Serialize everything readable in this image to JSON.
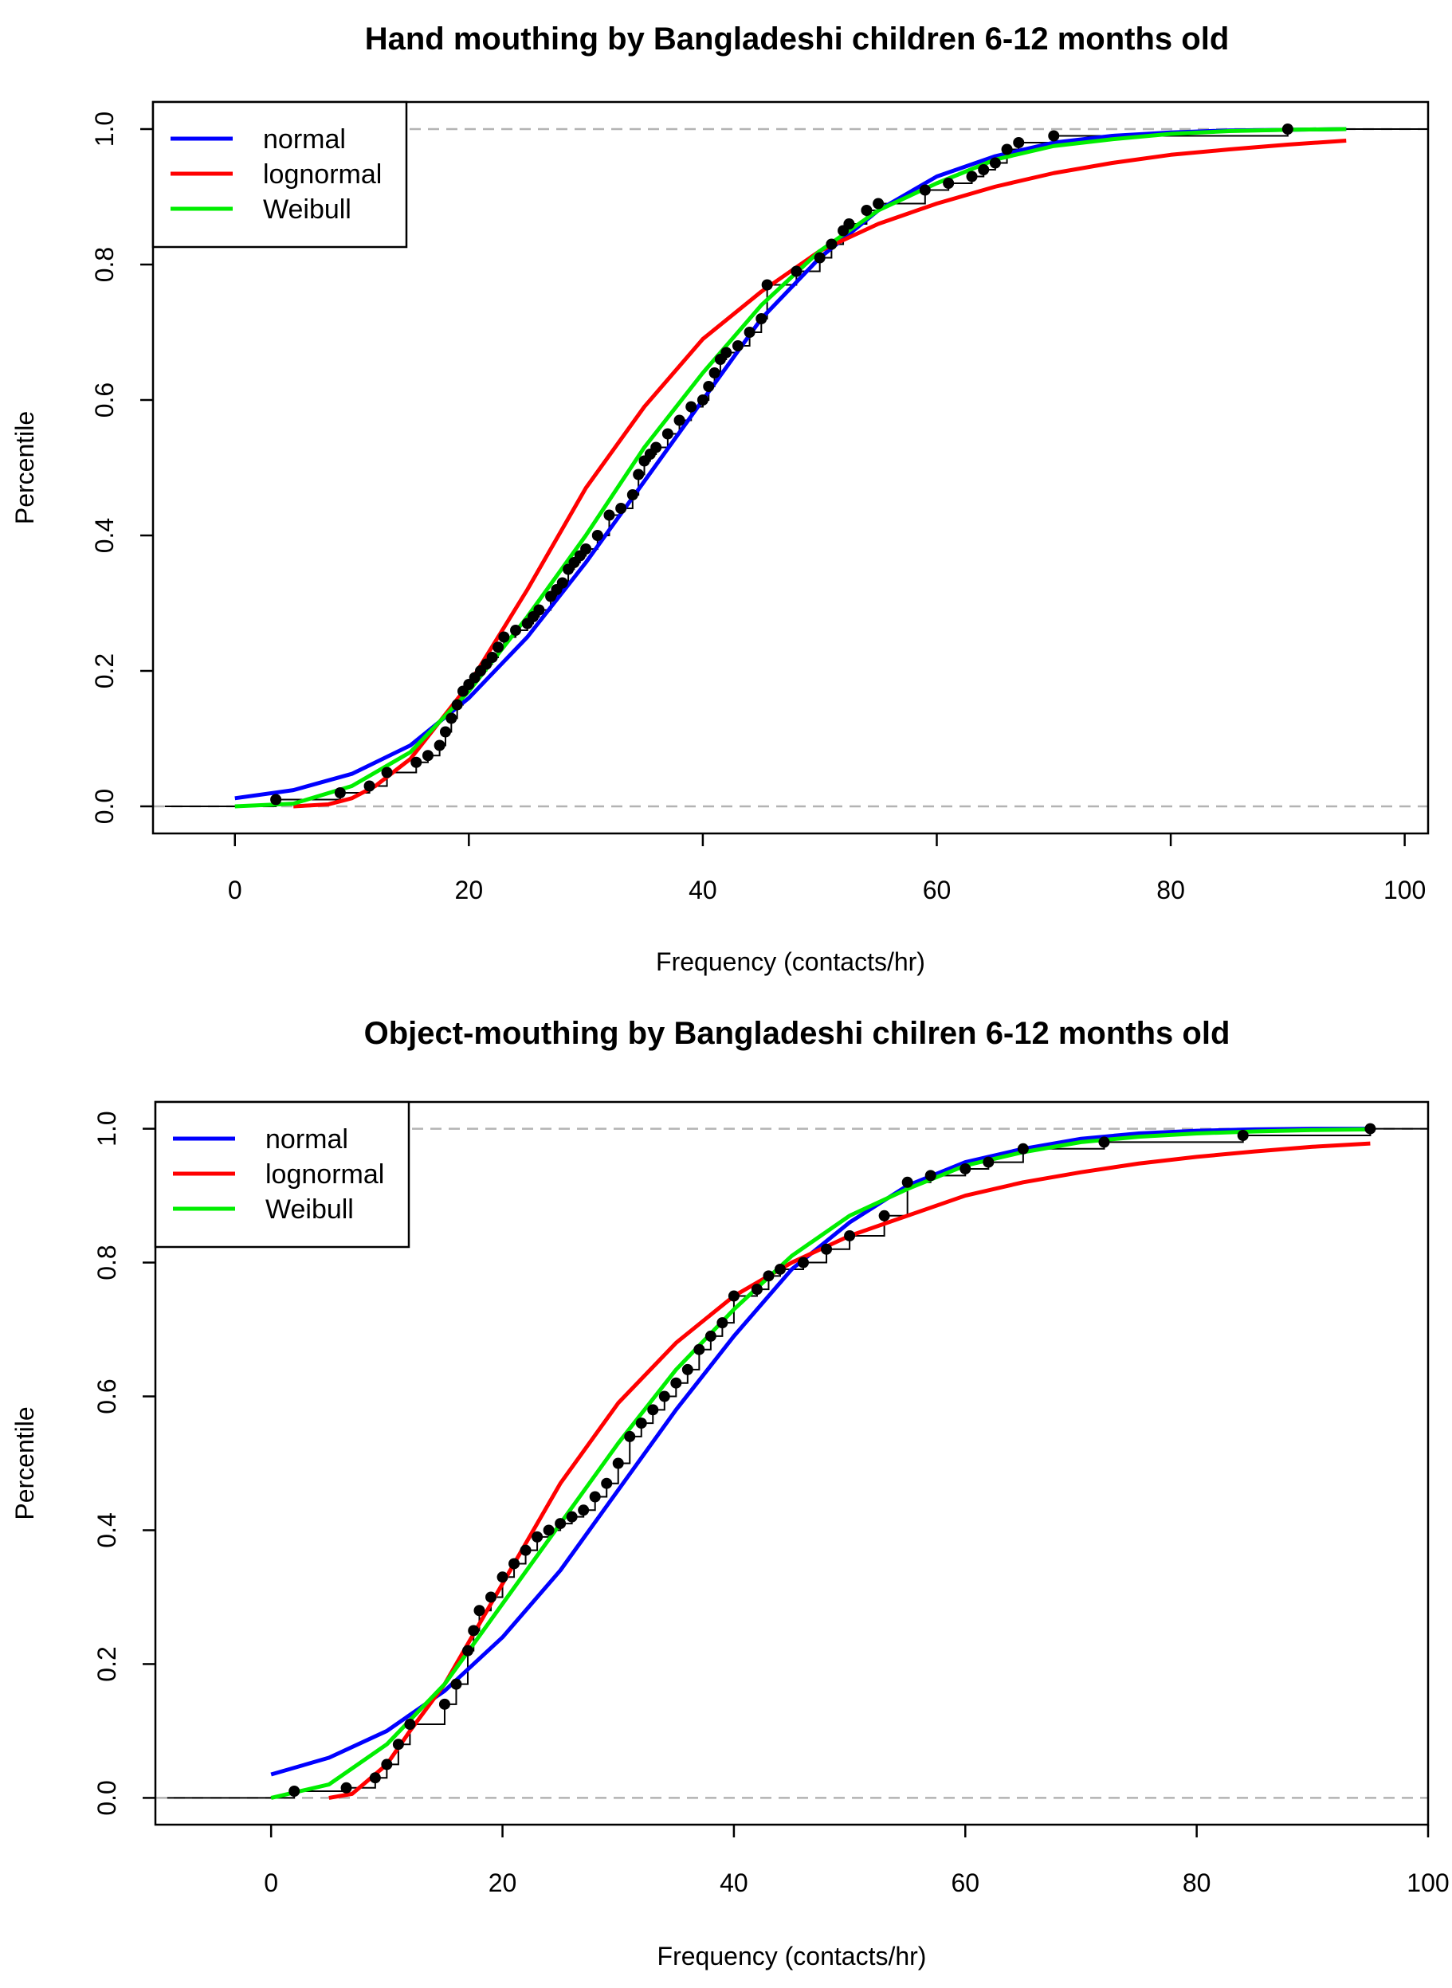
{
  "chart_data": [
    {
      "type": "line",
      "title": "Hand mouthing by Bangladeshi children 6-12 months old",
      "xlabel": "Frequency (contacts/hr)",
      "ylabel": "Percentile",
      "xlim": [
        -7,
        102
      ],
      "ylim": [
        -0.04,
        1.04
      ],
      "xticks": [
        "0",
        "20",
        "40",
        "60",
        "80",
        "100"
      ],
      "xtick_values": [
        0,
        20,
        40,
        60,
        80,
        100
      ],
      "yticks": [
        "0.0",
        "0.2",
        "0.4",
        "0.6",
        "0.8",
        "1.0"
      ],
      "ytick_values": [
        0,
        0.2,
        0.4,
        0.6,
        0.8,
        1.0
      ],
      "reference_lines": [
        0,
        1
      ],
      "legend": {
        "position": "top-left",
        "entries": [
          "normal",
          "lognormal",
          "Weibull"
        ]
      },
      "series": [
        {
          "name": "normal",
          "color": "#0000ff",
          "x": [
            0,
            5,
            10,
            15,
            20,
            25,
            30,
            35,
            40,
            45,
            50,
            55,
            60,
            65,
            70,
            75,
            80,
            85,
            90,
            95
          ],
          "y": [
            0.012,
            0.024,
            0.048,
            0.09,
            0.16,
            0.25,
            0.36,
            0.48,
            0.6,
            0.72,
            0.81,
            0.88,
            0.93,
            0.96,
            0.98,
            0.99,
            0.995,
            0.998,
            0.999,
            1.0
          ]
        },
        {
          "name": "lognormal",
          "color": "#ff0000",
          "x": [
            5,
            8,
            10,
            12,
            15,
            20,
            25,
            30,
            35,
            40,
            45,
            50,
            55,
            60,
            65,
            70,
            75,
            80,
            85,
            90,
            95
          ],
          "y": [
            0.0,
            0.003,
            0.012,
            0.03,
            0.07,
            0.18,
            0.32,
            0.47,
            0.59,
            0.69,
            0.76,
            0.82,
            0.86,
            0.89,
            0.915,
            0.935,
            0.95,
            0.962,
            0.97,
            0.977,
            0.983
          ]
        },
        {
          "name": "Weibull",
          "color": "#00ee00",
          "x": [
            0,
            5,
            10,
            15,
            20,
            25,
            30,
            35,
            40,
            45,
            50,
            55,
            60,
            65,
            70,
            75,
            80,
            85,
            90,
            95
          ],
          "y": [
            0.0,
            0.004,
            0.03,
            0.08,
            0.17,
            0.28,
            0.4,
            0.53,
            0.64,
            0.74,
            0.82,
            0.88,
            0.92,
            0.955,
            0.975,
            0.985,
            0.993,
            0.997,
            0.999,
            1.0
          ]
        }
      ],
      "empirical": {
        "name": "observed",
        "color": "#000000",
        "x": [
          3.5,
          9,
          11.5,
          13,
          15.5,
          16.5,
          17.5,
          18,
          18.5,
          19,
          19.5,
          20,
          20.5,
          21,
          21.5,
          22,
          22.5,
          23,
          24,
          25,
          25.5,
          26,
          27,
          27.5,
          28,
          28.5,
          29,
          29.5,
          30,
          31,
          32,
          33,
          34,
          34.5,
          35,
          35.5,
          36,
          37,
          38,
          39,
          40,
          40.5,
          41,
          41.5,
          42,
          43,
          44,
          45,
          45.5,
          48,
          50,
          51,
          52,
          52.5,
          54,
          55,
          59,
          61,
          63,
          64,
          65,
          66,
          67,
          70,
          90
        ],
        "y": [
          0.01,
          0.02,
          0.03,
          0.05,
          0.065,
          0.075,
          0.09,
          0.11,
          0.13,
          0.15,
          0.17,
          0.18,
          0.19,
          0.2,
          0.21,
          0.22,
          0.235,
          0.25,
          0.26,
          0.27,
          0.28,
          0.29,
          0.31,
          0.32,
          0.33,
          0.35,
          0.36,
          0.37,
          0.38,
          0.4,
          0.43,
          0.44,
          0.46,
          0.49,
          0.51,
          0.52,
          0.53,
          0.55,
          0.57,
          0.59,
          0.6,
          0.62,
          0.64,
          0.66,
          0.67,
          0.68,
          0.7,
          0.72,
          0.77,
          0.79,
          0.81,
          0.83,
          0.85,
          0.86,
          0.88,
          0.89,
          0.91,
          0.92,
          0.93,
          0.94,
          0.95,
          0.97,
          0.98,
          0.99,
          1.0
        ]
      }
    },
    {
      "type": "line",
      "title": "Object-mouthing by Bangladeshi chilren 6-12 months old",
      "xlabel": "Frequency (contacts/hr)",
      "ylabel": "Percentile",
      "xlim": [
        -10,
        100
      ],
      "ylim": [
        -0.04,
        1.04
      ],
      "xticks": [
        "0",
        "20",
        "40",
        "60",
        "80",
        "100"
      ],
      "xtick_values": [
        0,
        20,
        40,
        60,
        80,
        100
      ],
      "yticks": [
        "0.0",
        "0.2",
        "0.4",
        "0.6",
        "0.8",
        "1.0"
      ],
      "ytick_values": [
        0,
        0.2,
        0.4,
        0.6,
        0.8,
        1.0
      ],
      "reference_lines": [
        0,
        1
      ],
      "legend": {
        "position": "top-left",
        "entries": [
          "normal",
          "lognormal",
          "Weibull"
        ]
      },
      "series": [
        {
          "name": "normal",
          "color": "#0000ff",
          "x": [
            0,
            5,
            10,
            15,
            20,
            25,
            30,
            35,
            40,
            45,
            50,
            55,
            60,
            65,
            70,
            75,
            80,
            85,
            90,
            95
          ],
          "y": [
            0.035,
            0.06,
            0.1,
            0.16,
            0.24,
            0.34,
            0.46,
            0.58,
            0.69,
            0.79,
            0.86,
            0.915,
            0.95,
            0.97,
            0.985,
            0.993,
            0.997,
            0.999,
            1.0,
            1.0
          ]
        },
        {
          "name": "lognormal",
          "color": "#ff0000",
          "x": [
            5,
            7,
            10,
            12,
            15,
            20,
            25,
            30,
            35,
            40,
            45,
            50,
            55,
            60,
            65,
            70,
            75,
            80,
            85,
            90,
            95
          ],
          "y": [
            0.0,
            0.006,
            0.05,
            0.1,
            0.17,
            0.32,
            0.47,
            0.59,
            0.68,
            0.75,
            0.8,
            0.84,
            0.87,
            0.9,
            0.92,
            0.935,
            0.948,
            0.958,
            0.966,
            0.973,
            0.978
          ]
        },
        {
          "name": "Weibull",
          "color": "#00ee00",
          "x": [
            0,
            5,
            10,
            15,
            20,
            25,
            30,
            35,
            40,
            45,
            50,
            55,
            60,
            65,
            70,
            75,
            80,
            85,
            90,
            95
          ],
          "y": [
            0.0,
            0.02,
            0.08,
            0.17,
            0.29,
            0.41,
            0.53,
            0.64,
            0.73,
            0.81,
            0.87,
            0.91,
            0.945,
            0.965,
            0.98,
            0.988,
            0.993,
            0.996,
            0.998,
            0.999
          ]
        }
      ],
      "empirical": {
        "name": "observed",
        "color": "#000000",
        "x": [
          2,
          6.5,
          9,
          10,
          11,
          12,
          15,
          16,
          17,
          17.5,
          18,
          19,
          20,
          21,
          22,
          23,
          24,
          25,
          26,
          27,
          28,
          29,
          30,
          31,
          32,
          33,
          34,
          35,
          36,
          37,
          38,
          39,
          40,
          42,
          43,
          44,
          46,
          48,
          50,
          53,
          55,
          57,
          60,
          62,
          65,
          72,
          84,
          95
        ],
        "y": [
          0.01,
          0.015,
          0.03,
          0.05,
          0.08,
          0.11,
          0.14,
          0.17,
          0.22,
          0.25,
          0.28,
          0.3,
          0.33,
          0.35,
          0.37,
          0.39,
          0.4,
          0.41,
          0.42,
          0.43,
          0.45,
          0.47,
          0.5,
          0.54,
          0.56,
          0.58,
          0.6,
          0.62,
          0.64,
          0.67,
          0.69,
          0.71,
          0.75,
          0.76,
          0.78,
          0.79,
          0.8,
          0.82,
          0.84,
          0.87,
          0.92,
          0.93,
          0.94,
          0.95,
          0.97,
          0.98,
          0.99,
          1.0
        ]
      }
    }
  ]
}
